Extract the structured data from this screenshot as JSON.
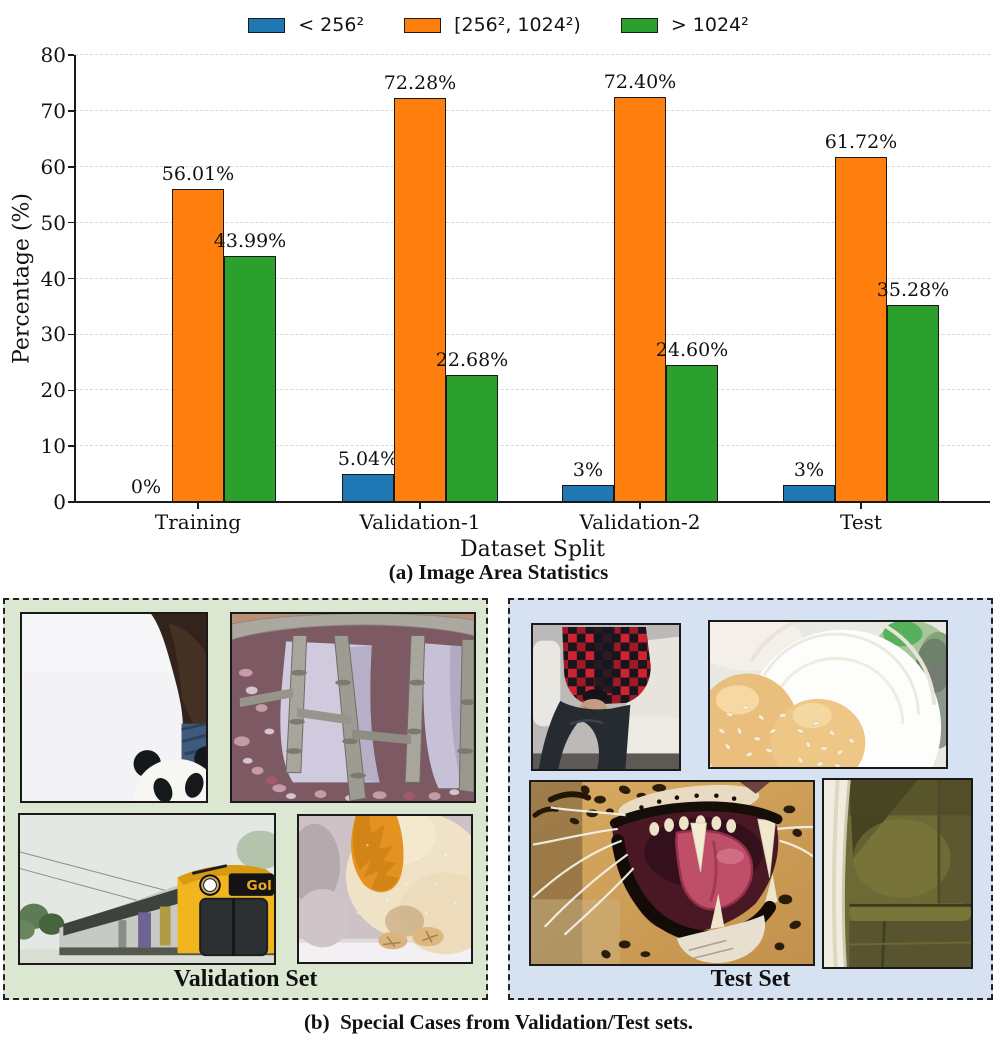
{
  "figure": {
    "caption_a": "(a) Image Area Statistics",
    "caption_b": "(b)  Special Cases from Validation/Test sets."
  },
  "chart_data": {
    "type": "bar",
    "title": "",
    "xlabel": "Dataset Split",
    "ylabel": "Percentage (%)",
    "ylim": [
      0,
      80
    ],
    "yticks": [
      0,
      10,
      20,
      30,
      40,
      50,
      60,
      70,
      80
    ],
    "grid": "horizontal-dashed",
    "legend_position": "top-center",
    "categories": [
      "Training",
      "Validation-1",
      "Validation-2",
      "Test"
    ],
    "series": [
      {
        "name": "< 256²",
        "color": "#1f77b4",
        "values": [
          0,
          5.04,
          3,
          3
        ],
        "value_labels": [
          "0%",
          "5.04%",
          "3%",
          "3%"
        ]
      },
      {
        "name": "[256², 1024²)",
        "color": "#ff7f0e",
        "values": [
          56.01,
          72.28,
          72.4,
          61.72
        ],
        "value_labels": [
          "56.01%",
          "72.28%",
          "72.40%",
          "61.72%"
        ]
      },
      {
        "name": "> 1024²",
        "color": "#2ca02c",
        "values": [
          43.99,
          22.68,
          24.6,
          35.28
        ],
        "value_labels": [
          "43.99%",
          "22.68%",
          "24.60%",
          "35.28%"
        ]
      }
    ]
  },
  "panels": {
    "validation": {
      "label": "Validation Set",
      "bg": "#dbe7d0",
      "images": [
        {
          "name": "white-wall-hair-panda-toy"
        },
        {
          "name": "wedding-chair-legs-tablecloth"
        },
        {
          "name": "yellow-train-front",
          "sign_text": "Gol"
        },
        {
          "name": "duckling-orange-wing-feet"
        }
      ]
    },
    "test": {
      "label": "Test Set",
      "bg": "#d6e2f2",
      "images": [
        {
          "name": "person-red-plaid-shirt"
        },
        {
          "name": "sesame-balls-white-bowl"
        },
        {
          "name": "leopard-roaring-mouth"
        },
        {
          "name": "olive-green-chair"
        }
      ]
    }
  },
  "style_colors": {
    "bar_edge": "#191919",
    "axis": "#1a1a1a",
    "gridline": "#d9d9d9"
  }
}
